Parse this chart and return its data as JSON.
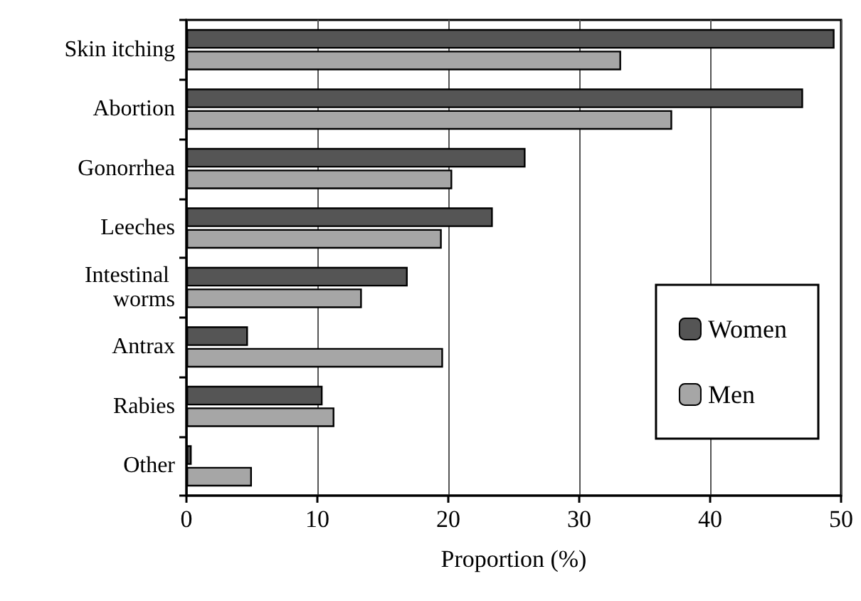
{
  "chart_data": {
    "type": "bar",
    "orientation": "horizontal",
    "xlabel": "Proportion (%)",
    "categories": [
      "Skin itching",
      "Abortion",
      "Gonorrhea",
      "Leeches",
      "Intestinal worms",
      "Antrax",
      "Rabies",
      "Other"
    ],
    "series": [
      {
        "name": "Women",
        "color": "#555555",
        "values": [
          49.5,
          47.1,
          25.9,
          23.4,
          16.9,
          4.7,
          10.4,
          0.4
        ]
      },
      {
        "name": "Men",
        "color": "#a6a6a6",
        "values": [
          33.2,
          37.1,
          20.3,
          19.5,
          13.4,
          19.6,
          11.3,
          5.0
        ]
      }
    ],
    "xlim": [
      0,
      50
    ],
    "xticks": [
      0,
      10,
      20,
      30,
      40,
      50
    ],
    "grid": "x",
    "legend": "right"
  }
}
